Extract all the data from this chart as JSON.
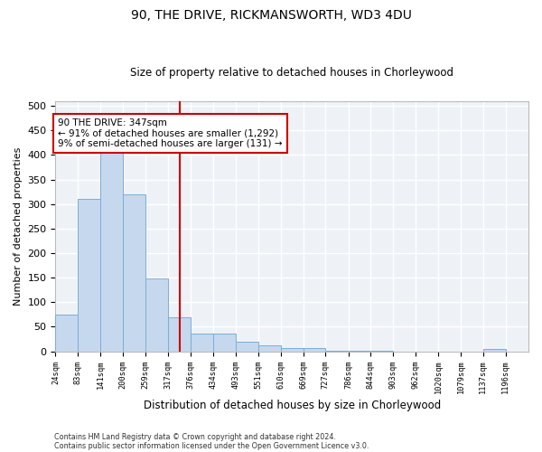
{
  "title": "90, THE DRIVE, RICKMANSWORTH, WD3 4DU",
  "subtitle": "Size of property relative to detached houses in Chorleywood",
  "xlabel": "Distribution of detached houses by size in Chorleywood",
  "ylabel": "Number of detached properties",
  "footnote1": "Contains HM Land Registry data © Crown copyright and database right 2024.",
  "footnote2": "Contains public sector information licensed under the Open Government Licence v3.0.",
  "bar_edges": [
    24,
    83,
    141,
    200,
    259,
    317,
    376,
    434,
    493,
    551,
    610,
    669,
    727,
    786,
    844,
    903,
    962,
    1020,
    1079,
    1137,
    1196
  ],
  "bar_heights": [
    75,
    311,
    408,
    319,
    148,
    70,
    36,
    36,
    19,
    12,
    7,
    7,
    1,
    1,
    1,
    0,
    0,
    0,
    0,
    5
  ],
  "bar_color": "#c5d8ed",
  "bar_edge_color": "#7aafd4",
  "property_value": 347,
  "vline_color": "#cc0000",
  "annotation_text": "90 THE DRIVE: 347sqm\n← 91% of detached houses are smaller (1,292)\n9% of semi-detached houses are larger (131) →",
  "annotation_box_color": "#cc0000",
  "ylim": [
    0,
    510
  ],
  "xlim_left": 24,
  "xlim_right": 1255,
  "background_color": "#eef2f7",
  "plot_bg_color": "#eef2f7",
  "grid_color": "#ffffff",
  "yticks": [
    0,
    50,
    100,
    150,
    200,
    250,
    300,
    350,
    400,
    450,
    500
  ]
}
